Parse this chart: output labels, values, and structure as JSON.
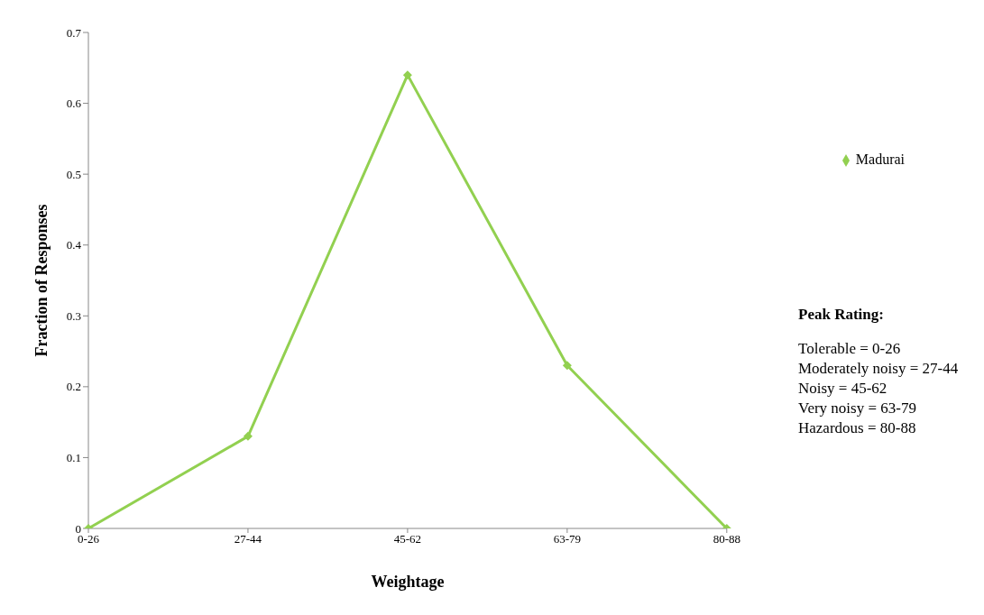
{
  "chart_data": {
    "type": "line",
    "xlabel": "Weightage",
    "ylabel": "Fraction of Responses",
    "categories": [
      "0-26",
      "27-44",
      "45-62",
      "63-79",
      "80-88"
    ],
    "series": [
      {
        "name": "Madurai",
        "color": "#92d050",
        "values": [
          0,
          0.13,
          0.64,
          0.23,
          0
        ]
      }
    ],
    "ylim": [
      0,
      0.7
    ],
    "yticks": [
      0,
      0.1,
      0.2,
      0.3,
      0.4,
      0.5,
      0.6,
      0.7
    ],
    "grid": false,
    "legend": "right",
    "marker": "diamond",
    "line_style": "solid",
    "annotations": [
      "Peak Rating:",
      "Tolerable = 0-26",
      "Moderately noisy = 27-44",
      "Noisy = 45-62",
      "Very noisy = 63-79",
      "Hazardous = 80-88"
    ]
  }
}
